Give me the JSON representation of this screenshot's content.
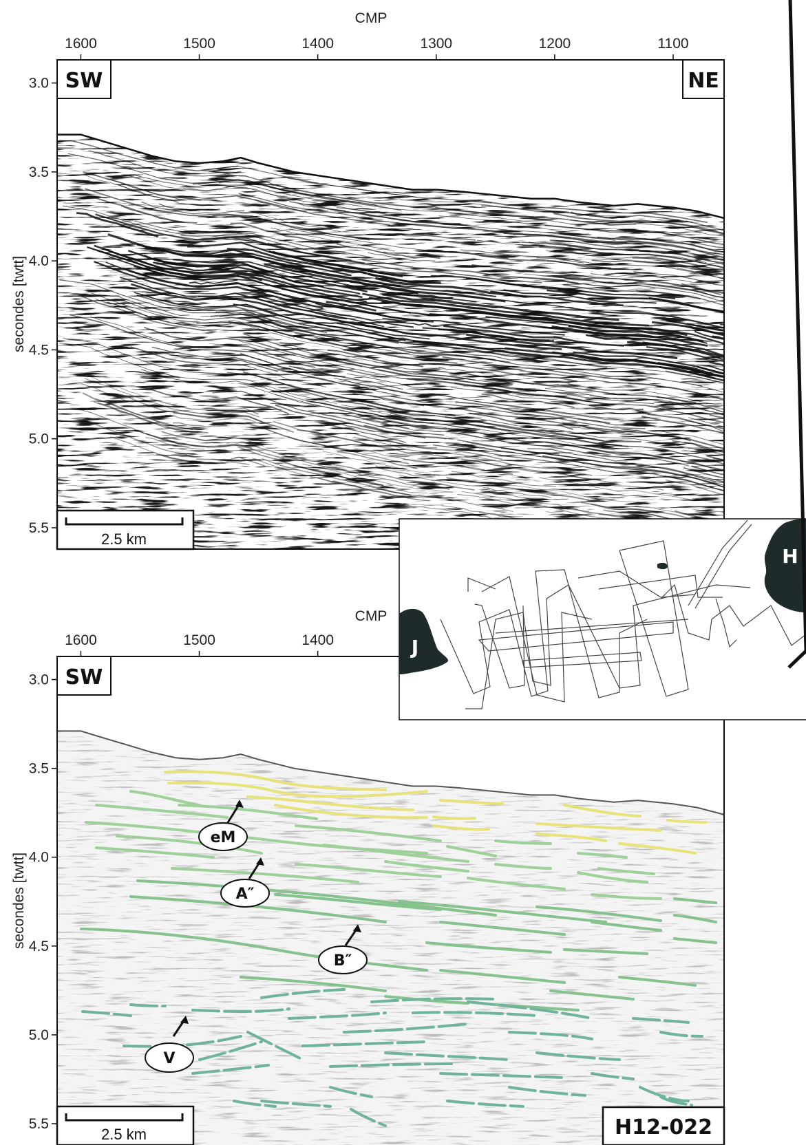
{
  "top_panel": {
    "x_axis_title": "CMP",
    "x_ticks": [
      {
        "value": 1600,
        "label": "1600"
      },
      {
        "value": 1500,
        "label": "1500"
      },
      {
        "value": 1400,
        "label": "1400"
      },
      {
        "value": 1300,
        "label": "1300"
      },
      {
        "value": 1200,
        "label": "1200"
      },
      {
        "value": 1100,
        "label": "1100"
      }
    ],
    "x_range": [
      1620,
      1057
    ],
    "y_axis_title": "secondes [twtt]",
    "y_ticks": [
      {
        "value": 3.0,
        "label": "3.0"
      },
      {
        "value": 3.5,
        "label": "3.5"
      },
      {
        "value": 4.0,
        "label": "4.0"
      },
      {
        "value": 4.5,
        "label": "4.5"
      },
      {
        "value": 5.0,
        "label": "5.0"
      },
      {
        "value": 5.5,
        "label": "5.5"
      }
    ],
    "y_range": [
      2.87,
      5.62
    ],
    "left_label": "SW",
    "right_label": "NE",
    "scale_bar": "2.5 km",
    "seafloor_profile": {
      "cmp": [
        1620,
        1600,
        1580,
        1560,
        1540,
        1520,
        1500,
        1480,
        1465,
        1450,
        1420,
        1400,
        1380,
        1350,
        1320,
        1300,
        1280,
        1250,
        1220,
        1200,
        1180,
        1150,
        1130,
        1100,
        1080,
        1057
      ],
      "twtt": [
        3.29,
        3.29,
        3.33,
        3.37,
        3.41,
        3.44,
        3.45,
        3.44,
        3.42,
        3.45,
        3.5,
        3.52,
        3.54,
        3.57,
        3.6,
        3.6,
        3.61,
        3.63,
        3.65,
        3.65,
        3.67,
        3.69,
        3.68,
        3.7,
        3.72,
        3.76
      ]
    }
  },
  "bottom_panel": {
    "x_axis_title": "CMP",
    "x_ticks": [
      {
        "value": 1600,
        "label": "1600"
      },
      {
        "value": 1500,
        "label": "1500"
      },
      {
        "value": 1400,
        "label": "1400"
      }
    ],
    "y_axis_title": "secondes [twtt]",
    "y_ticks": [
      {
        "value": 3.0,
        "label": "3.0"
      },
      {
        "value": 3.5,
        "label": "3.5"
      },
      {
        "value": 4.0,
        "label": "4.0"
      },
      {
        "value": 4.5,
        "label": "4.5"
      },
      {
        "value": 5.0,
        "label": "5.0"
      },
      {
        "value": 5.5,
        "label": "5.5"
      }
    ],
    "left_label": "SW",
    "line_id": "H12-022",
    "scale_bar": "2.5 km",
    "horizon_labels": [
      "eM",
      "A″",
      "B″",
      "V"
    ],
    "horizon_colors": {
      "yellow": "#e8e27a",
      "green_light": "#9fd09a",
      "green_mid": "#86c28e",
      "green_deep": "#6fb39a"
    }
  },
  "inset_map": {
    "labels": [
      "H",
      "J"
    ],
    "land_color": "#1f2b2a"
  }
}
